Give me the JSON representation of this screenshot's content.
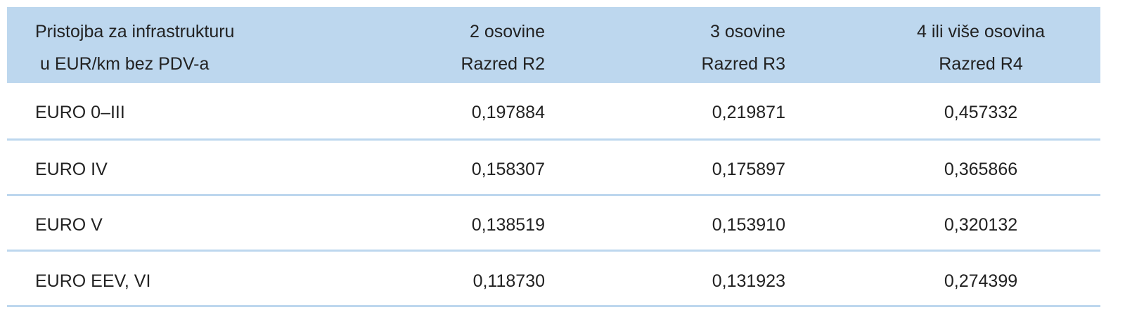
{
  "table": {
    "header": [
      [
        "Pristojba za infrastrukturu",
        "u EUR/km bez PDV-a"
      ],
      [
        "2 osovine",
        "Razred R2"
      ],
      [
        "3 osovine",
        "Razred R3"
      ],
      [
        "4 ili više osovina",
        "Razred R4"
      ]
    ],
    "rows": [
      [
        "EURO 0–III",
        "0,197884",
        "0,219871",
        "0,457332"
      ],
      [
        "EURO IV",
        "0,158307",
        "0,175897",
        "0,365866"
      ],
      [
        "EURO V",
        "0,138519",
        "0,153910",
        "0,320132"
      ],
      [
        "EURO EEV, VI",
        "0,118730",
        "0,131923",
        "0,274399"
      ]
    ]
  }
}
